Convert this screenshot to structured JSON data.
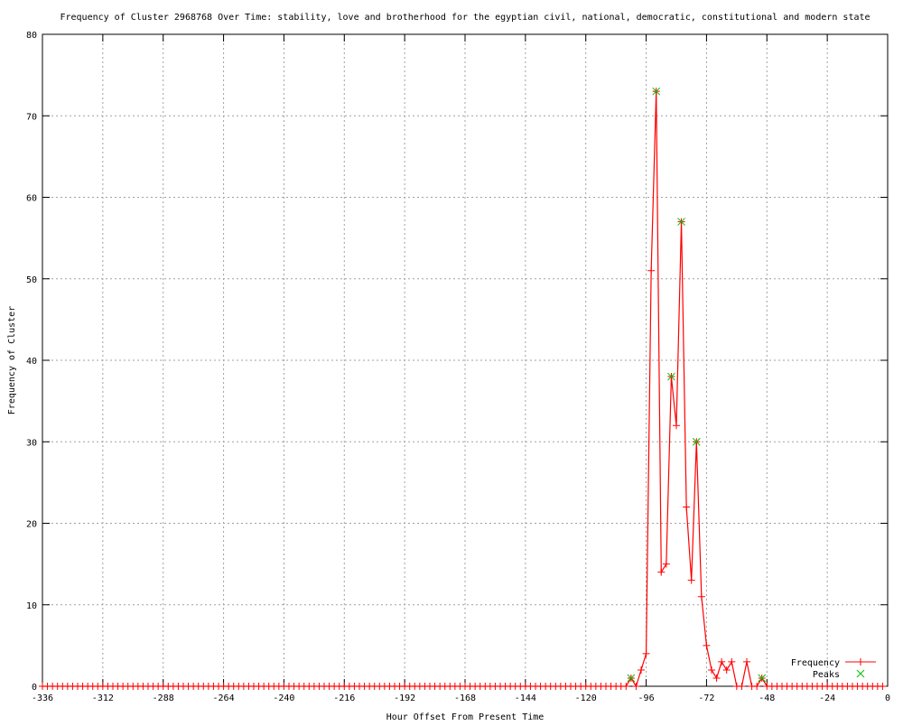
{
  "chart_data": {
    "type": "line",
    "title": "Frequency of Cluster 2968768 Over Time: stability, love and brotherhood for the egyptian civil, national, democratic, constitutional and modern state",
    "xlabel": "Hour Offset From Present Time",
    "ylabel": "Frequency of Cluster",
    "xlim": [
      -336,
      0
    ],
    "ylim": [
      0,
      80
    ],
    "xticks": [
      -336,
      -312,
      -288,
      -264,
      -240,
      -216,
      -192,
      -168,
      -144,
      -120,
      -96,
      -72,
      -48,
      -24,
      0
    ],
    "yticks": [
      0,
      10,
      20,
      30,
      40,
      50,
      60,
      70,
      80
    ],
    "grid": true,
    "legend_position": "bottom-right",
    "series": [
      {
        "name": "Frequency",
        "color": "#ff0000",
        "marker": "plus",
        "x": [
          -336,
          -334,
          -332,
          -330,
          -328,
          -326,
          -324,
          -322,
          -320,
          -318,
          -316,
          -314,
          -312,
          -310,
          -308,
          -306,
          -304,
          -302,
          -300,
          -298,
          -296,
          -294,
          -292,
          -290,
          -288,
          -286,
          -284,
          -282,
          -280,
          -278,
          -276,
          -274,
          -272,
          -270,
          -268,
          -266,
          -264,
          -262,
          -260,
          -258,
          -256,
          -254,
          -252,
          -250,
          -248,
          -246,
          -244,
          -242,
          -240,
          -238,
          -236,
          -234,
          -232,
          -230,
          -228,
          -226,
          -224,
          -222,
          -220,
          -218,
          -216,
          -214,
          -212,
          -210,
          -208,
          -206,
          -204,
          -202,
          -200,
          -198,
          -196,
          -194,
          -192,
          -190,
          -188,
          -186,
          -184,
          -182,
          -180,
          -178,
          -176,
          -174,
          -172,
          -170,
          -168,
          -166,
          -164,
          -162,
          -160,
          -158,
          -156,
          -154,
          -152,
          -150,
          -148,
          -146,
          -144,
          -142,
          -140,
          -138,
          -136,
          -134,
          -132,
          -130,
          -128,
          -126,
          -124,
          -122,
          -120,
          -118,
          -116,
          -114,
          -112,
          -110,
          -108,
          -106,
          -104,
          -102,
          -100,
          -98,
          -96,
          -94,
          -92,
          -90,
          -88,
          -86,
          -84,
          -82,
          -80,
          -78,
          -76,
          -74,
          -72,
          -70,
          -68,
          -66,
          -64,
          -62,
          -60,
          -58,
          -56,
          -54,
          -52,
          -50,
          -48,
          -46,
          -44,
          -42,
          -40,
          -38,
          -36,
          -34,
          -32,
          -30,
          -28,
          -26,
          -24,
          -22,
          -20,
          -18,
          -16,
          -14,
          -12,
          -10,
          -8,
          -6,
          -4,
          -2
        ],
        "y": [
          0,
          0,
          0,
          0,
          0,
          0,
          0,
          0,
          0,
          0,
          0,
          0,
          0,
          0,
          0,
          0,
          0,
          0,
          0,
          0,
          0,
          0,
          0,
          0,
          0,
          0,
          0,
          0,
          0,
          0,
          0,
          0,
          0,
          0,
          0,
          0,
          0,
          0,
          0,
          0,
          0,
          0,
          0,
          0,
          0,
          0,
          0,
          0,
          0,
          0,
          0,
          0,
          0,
          0,
          0,
          0,
          0,
          0,
          0,
          0,
          0,
          0,
          0,
          0,
          0,
          0,
          0,
          0,
          0,
          0,
          0,
          0,
          0,
          0,
          0,
          0,
          0,
          0,
          0,
          0,
          0,
          0,
          0,
          0,
          0,
          0,
          0,
          0,
          0,
          0,
          0,
          0,
          0,
          0,
          0,
          0,
          0,
          0,
          0,
          0,
          0,
          0,
          0,
          0,
          0,
          0,
          0,
          0,
          0,
          0,
          0,
          0,
          0,
          0,
          0,
          0,
          0,
          1,
          0,
          2,
          4,
          51,
          73,
          14,
          15,
          38,
          32,
          57,
          22,
          13,
          30,
          11,
          5,
          2,
          1,
          3,
          2,
          3,
          0,
          0,
          3,
          0,
          0,
          1,
          0,
          0,
          0,
          0,
          0,
          0,
          0,
          0,
          0,
          0,
          0,
          0,
          0,
          0,
          0,
          0,
          0,
          0,
          0,
          0,
          0,
          0,
          0,
          0
        ]
      },
      {
        "name": "Peaks",
        "color": "#00c000",
        "marker": "x",
        "x": [
          -102,
          -92,
          -86,
          -82,
          -76,
          -50
        ],
        "y": [
          1,
          73,
          38,
          57,
          30,
          1
        ]
      }
    ]
  }
}
